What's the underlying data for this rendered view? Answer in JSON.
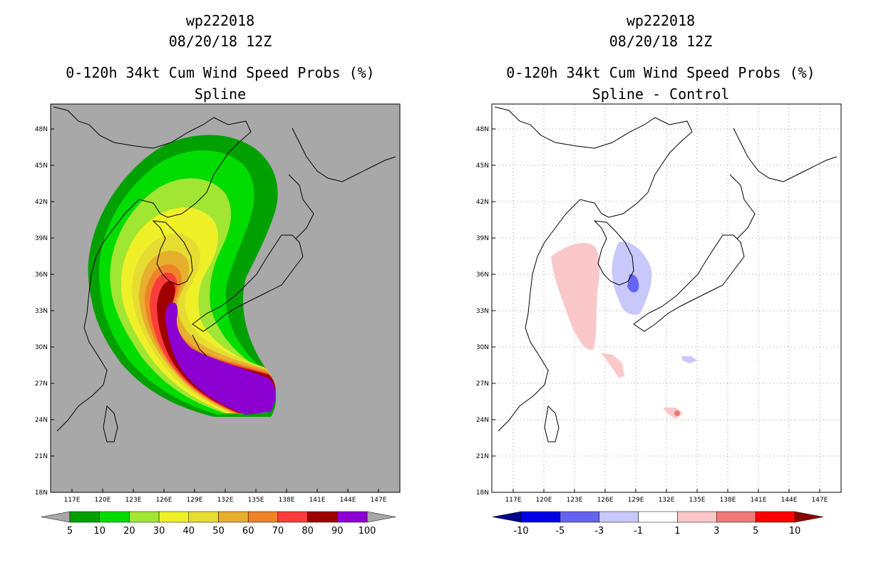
{
  "colors": {
    "land_bg": "#a8a8a8",
    "probs": [
      "#00a000",
      "#00dc00",
      "#a0e632",
      "#f0f028",
      "#e6dc32",
      "#e6af2d",
      "#f08228",
      "#fa3c3c",
      "#a00000",
      "#8c00d2"
    ],
    "diff": [
      "#00008c",
      "#0000e6",
      "#6464f0",
      "#c8c8fa",
      "#ffffff",
      "#fac8c8",
      "#f07878",
      "#ff0000",
      "#8c0000"
    ]
  },
  "panels": [
    {
      "storm_id": "wp222018",
      "datetime": "08/20/18 12Z",
      "product": "0-120h 34kt Cum Wind Speed Probs (%)",
      "subtitle": "Spline",
      "colorbar_labels": [
        "5",
        "10",
        "20",
        "30",
        "40",
        "50",
        "60",
        "70",
        "80",
        "90",
        "100"
      ]
    },
    {
      "storm_id": "wp222018",
      "datetime": "08/20/18 12Z",
      "product": "0-120h 34kt Cum Wind Speed Probs (%)",
      "subtitle": "Spline - Control",
      "colorbar_labels": [
        "-10",
        "-5",
        "-3",
        "-1",
        "1",
        "3",
        "5",
        "10"
      ]
    }
  ],
  "lat_labels": [
    "48N",
    "45N",
    "42N",
    "39N",
    "36N",
    "33N",
    "30N",
    "27N",
    "24N",
    "21N",
    "18N"
  ],
  "lon_labels": [
    "117E",
    "120E",
    "123E",
    "126E",
    "129E",
    "132E",
    "135E",
    "138E",
    "141E",
    "144E",
    "147E"
  ]
}
